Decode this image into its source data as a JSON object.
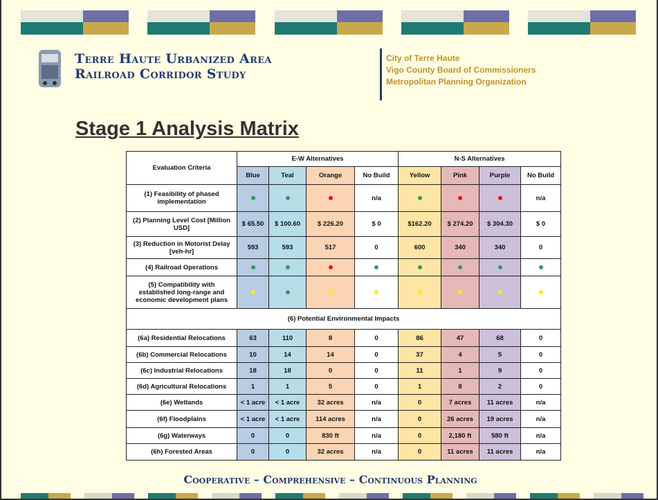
{
  "header": {
    "title_line1": "Terre Haute Urbanized Area",
    "title_line2": "Railroad Corridor Study",
    "organizations": [
      "City of Terre Haute",
      "Vigo County Board of Commissioners",
      "Metropolitan Planning Organization"
    ]
  },
  "title": "Stage 1 Analysis Matrix",
  "table": {
    "criteria_header": "Evaluation Criteria",
    "groups": [
      "E-W Alternatives",
      "N-S Alternatives"
    ],
    "columns": [
      "Blue",
      "Teal",
      "Orange",
      "No Build",
      "Yellow",
      "Pink",
      "Purple",
      "No Build"
    ],
    "column_colors": [
      "#b8cce4",
      "#b7dde8",
      "#fbd4b4",
      "#ffffff",
      "#fde5a6",
      "#e6b8b7",
      "#ccc0da",
      "#ffffff"
    ],
    "rows_a": [
      {
        "label": "(1) Feasibility of phased implementation",
        "cells": [
          {
            "dot": "#2e9e5b"
          },
          {
            "dot": "#2e9e5b"
          },
          {
            "dot": "#ee1111"
          },
          "n/a",
          {
            "dot": "#2e9e5b"
          },
          {
            "dot": "#ee1111"
          },
          {
            "dot": "#ee1111"
          },
          "n/a"
        ]
      },
      {
        "label": "(2) Planning Level Cost [Million USD]",
        "cells": [
          "$ 65.50",
          "$ 100.60",
          "$ 226.20",
          "$ 0",
          "$162.20",
          "$ 274.20",
          "$ 304.30",
          "$ 0"
        ]
      },
      {
        "label": "(3) Reduction in Motorist Delay [veh-hr]",
        "cells": [
          593,
          593,
          517,
          0,
          600,
          340,
          340,
          0
        ]
      },
      {
        "label": "(4) Railroad Operations",
        "cells": [
          {
            "dot": "#2e9e5b"
          },
          {
            "dot": "#2e9e5b"
          },
          {
            "dot": "#ee1111"
          },
          {
            "dot": "#2e9e5b"
          },
          {
            "dot": "#2e9e5b"
          },
          {
            "dot": "#2e9e5b"
          },
          {
            "dot": "#2e9e5b"
          },
          {
            "dot": "#2e9e5b"
          }
        ]
      },
      {
        "label": "(5) Compatibility with established long-range and economic development plans",
        "cells": [
          {
            "dot": "#ffee00"
          },
          {
            "dot": "#2e9e5b"
          },
          {
            "dot": "#ffee00"
          },
          {
            "dot": "#ffee00"
          },
          {
            "dot": "#ffee00"
          },
          {
            "dot": "#ffee00"
          },
          {
            "dot": "#ffee00"
          },
          {
            "dot": "#ffee00"
          }
        ]
      }
    ],
    "section": "(6) Potential Environmental Impacts",
    "rows_b": [
      {
        "label": "(6a) Residential Relocations",
        "cells": [
          63,
          110,
          8,
          0,
          86,
          47,
          68,
          0
        ]
      },
      {
        "label": "(6b) Commercial Relocations",
        "cells": [
          10,
          14,
          14,
          0,
          37,
          4,
          5,
          0
        ]
      },
      {
        "label": "(6c)  Industrial Relocations",
        "cells": [
          18,
          18,
          0,
          0,
          11,
          1,
          9,
          0
        ]
      },
      {
        "label": "(6d) Agricultural Relocations",
        "cells": [
          1,
          1,
          5,
          0,
          1,
          8,
          2,
          0
        ]
      },
      {
        "label": "(6e) Wetlands",
        "cells": [
          "< 1 acre",
          "< 1 acre",
          "32 acres",
          "n/a",
          "0",
          "7 acres",
          "11 acres",
          "n/a"
        ]
      },
      {
        "label": "(6f) Floodplains",
        "cells": [
          "< 1 acre",
          "< 1 acre",
          "114 acres",
          "n/a",
          "0",
          "26 acres",
          "19 acres",
          "n/a"
        ]
      },
      {
        "label": "(6g) Waterways",
        "cells": [
          "0",
          "0",
          "830 ft",
          "n/a",
          "0",
          "2,180 ft",
          "580 ft",
          "n/a"
        ]
      },
      {
        "label": "(6h) Forested Areas",
        "cells": [
          "0",
          "0",
          "32 acres",
          "n/a",
          "0",
          "11 acres",
          "11 acres",
          "n/a"
        ]
      }
    ]
  },
  "footer": "Cooperative – Comprehensive – Continuous Planning"
}
